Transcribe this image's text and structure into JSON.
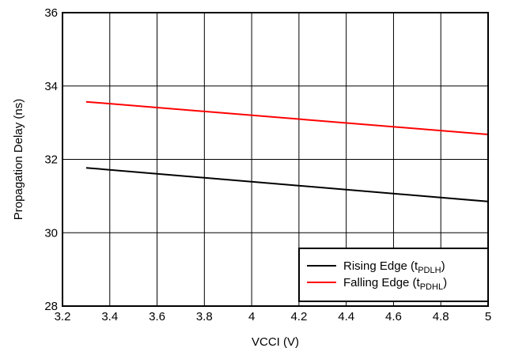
{
  "chart_data": {
    "type": "line",
    "xlabel": "VCCI (V)",
    "ylabel": "Propagation Delay (ns)",
    "xlim": [
      3.2,
      5
    ],
    "ylim": [
      28,
      36
    ],
    "x_ticks": [
      "3.2",
      "3.4",
      "3.6",
      "3.8",
      "4",
      "4.2",
      "4.4",
      "4.6",
      "4.8",
      "5"
    ],
    "y_ticks": [
      "28",
      "30",
      "32",
      "34",
      "36"
    ],
    "grid": true,
    "legend_position": "bottom-right",
    "series": [
      {
        "name": "Rising Edge (tPDLH)",
        "name_parts": {
          "main": "Rising Edge (t",
          "sub": "PDLH",
          "end": ")"
        },
        "color": "#000000",
        "x": [
          3.3,
          5.0
        ],
        "y": [
          31.77,
          30.85
        ]
      },
      {
        "name": "Falling Edge (tPDHL)",
        "name_parts": {
          "main": "Falling Edge (t",
          "sub": "PDHL",
          "end": ")"
        },
        "color": "#ff0000",
        "x": [
          3.3,
          5.0
        ],
        "y": [
          33.57,
          32.68
        ]
      }
    ]
  }
}
